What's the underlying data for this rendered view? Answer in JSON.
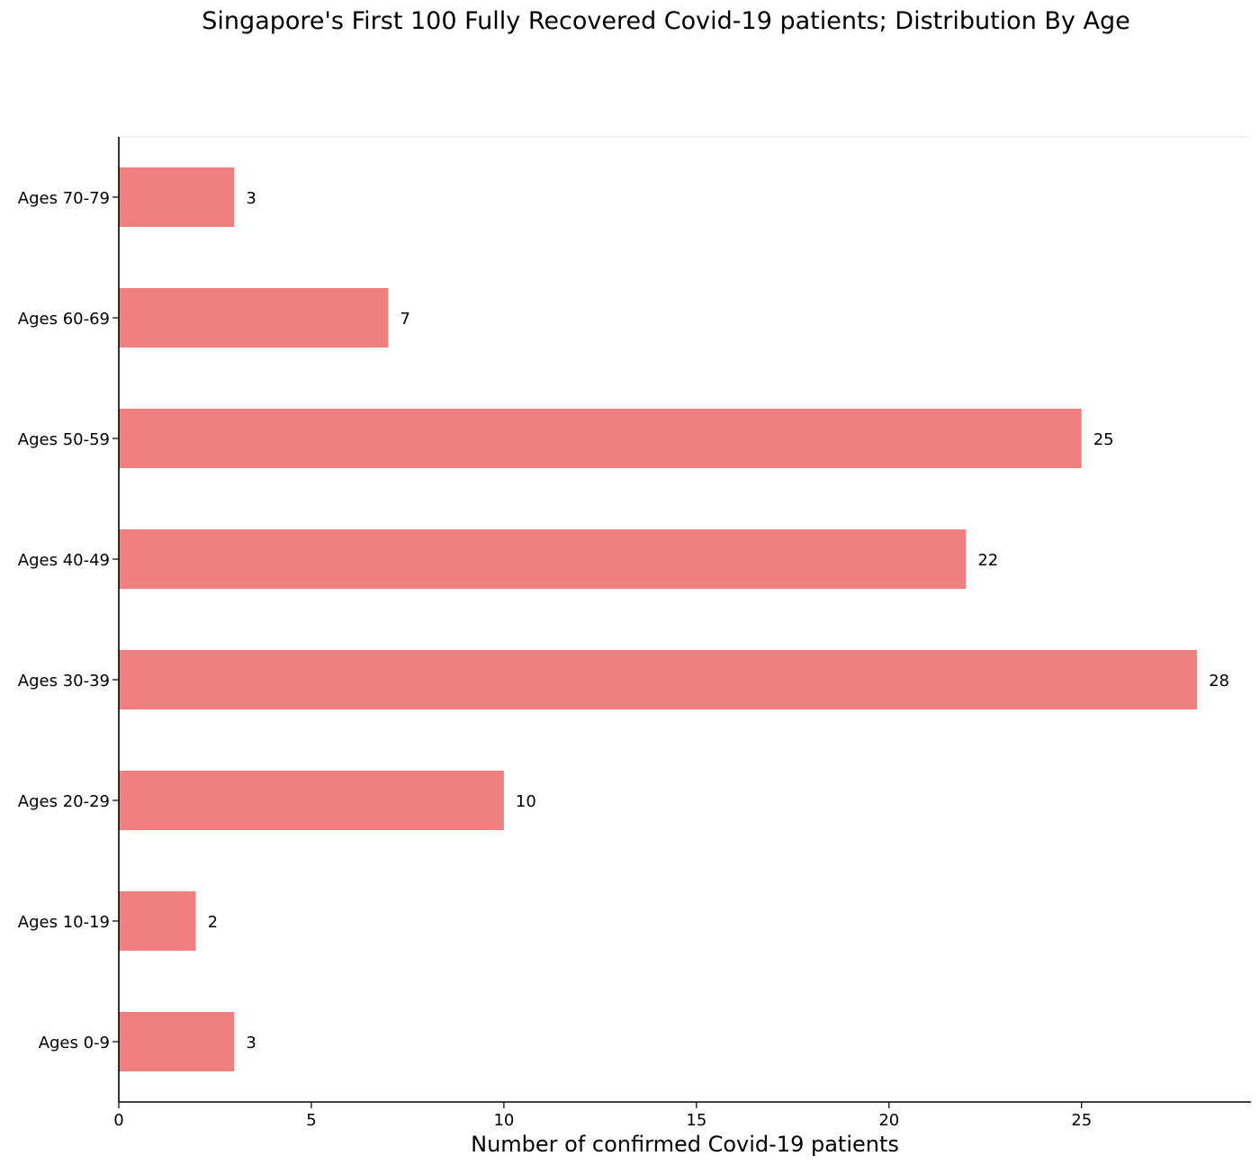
{
  "chart_data": {
    "type": "bar",
    "orientation": "horizontal",
    "title": "Singapore's First 100 Fully Recovered Covid-19 patients; Distribution By Age",
    "xlabel": "Number of confirmed Covid-19 patients",
    "ylabel": "",
    "categories": [
      "Ages 0-9",
      "Ages 10-19",
      "Ages 20-29",
      "Ages 30-39",
      "Ages 40-49",
      "Ages 50-59",
      "Ages 60-69",
      "Ages 70-79"
    ],
    "values": [
      3,
      2,
      10,
      28,
      22,
      25,
      7,
      3
    ],
    "data_labels": [
      "3",
      "2",
      "10",
      "28",
      "22",
      "25",
      "7",
      "3"
    ],
    "xlim": [
      0,
      29.4
    ],
    "xticks": [
      0,
      5,
      10,
      15,
      20,
      25
    ],
    "xtick_labels": [
      "0",
      "5",
      "10",
      "15",
      "20",
      "25"
    ],
    "grid": false,
    "bar_color": "#f08080",
    "spines": [
      "left",
      "bottom"
    ]
  }
}
